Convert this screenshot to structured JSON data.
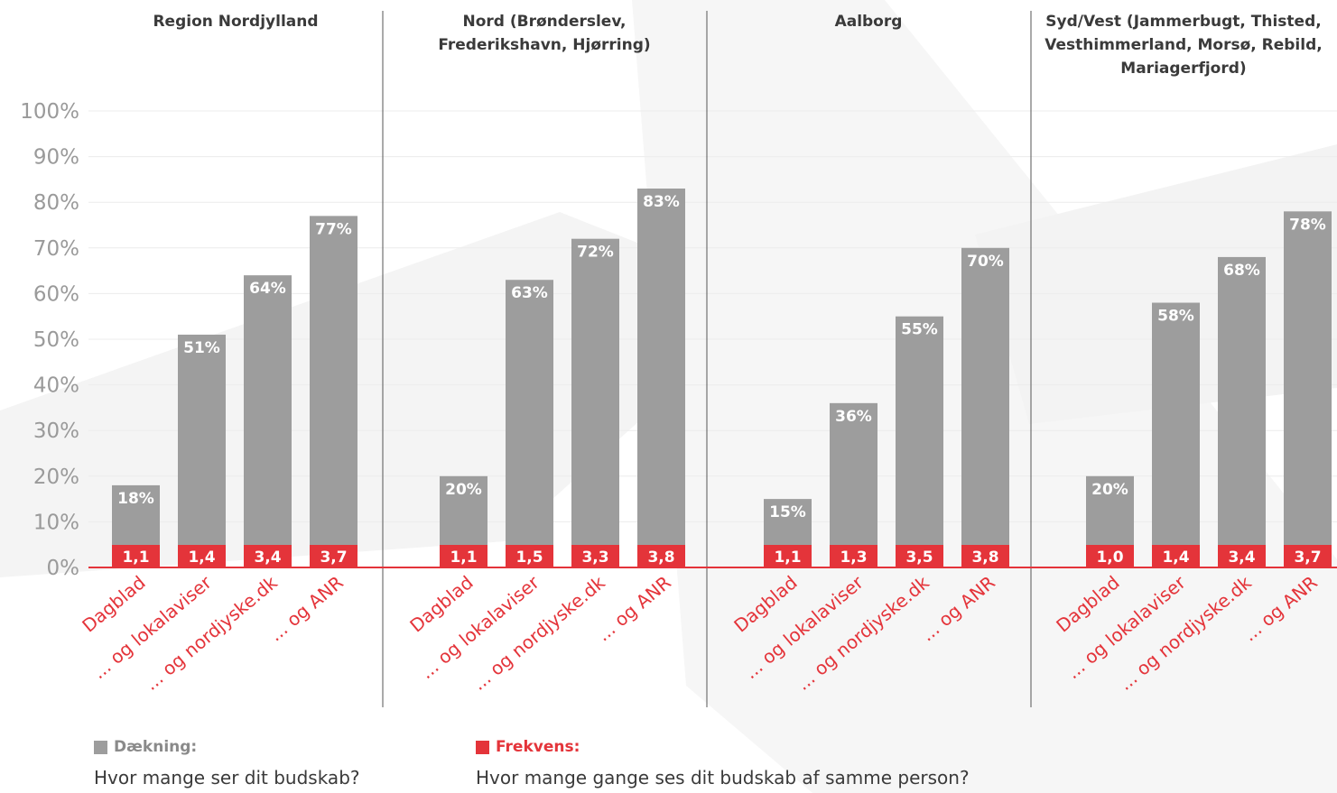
{
  "chart_data": {
    "type": "bar",
    "ylim": [
      0,
      100
    ],
    "y_ticks": [
      "0%",
      "10%",
      "20%",
      "30%",
      "40%",
      "50%",
      "60%",
      "70%",
      "80%",
      "90%",
      "100%"
    ],
    "categories": [
      "Dagblad",
      "... og lokalaviser",
      "... og nordjyske.dk",
      "... og ANR"
    ],
    "grid": true,
    "colors": {
      "coverage": "#9d9d9d",
      "frequency": "#e4343a",
      "axis_text": "#9a9a9a",
      "divider": "#555555"
    },
    "panels": [
      {
        "title": "Region Nordjylland",
        "coverage": [
          18,
          51,
          64,
          77
        ],
        "coverage_labels": [
          "18%",
          "51%",
          "64%",
          "77%"
        ],
        "frequency": [
          "1,1",
          "1,4",
          "3,4",
          "3,7"
        ]
      },
      {
        "title": "Nord (Brønderslev, Frederikshavn, Hjørring)",
        "coverage": [
          20,
          63,
          72,
          83
        ],
        "coverage_labels": [
          "20%",
          "63%",
          "72%",
          "83%"
        ],
        "frequency": [
          "1,1",
          "1,5",
          "3,3",
          "3,8"
        ]
      },
      {
        "title": "Aalborg",
        "coverage": [
          15,
          36,
          55,
          70
        ],
        "coverage_labels": [
          "15%",
          "36%",
          "55%",
          "70%"
        ],
        "frequency": [
          "1,1",
          "1,3",
          "3,5",
          "3,8"
        ]
      },
      {
        "title": "Syd/Vest (Jammerbugt, Thisted, Vesthimmerland, Morsø, Rebild, Mariagerfjord)",
        "coverage": [
          20,
          58,
          68,
          78
        ],
        "coverage_labels": [
          "20%",
          "58%",
          "68%",
          "78%"
        ],
        "frequency": [
          "1,0",
          "1,4",
          "3,4",
          "3,7"
        ]
      }
    ]
  },
  "legend": {
    "coverage": {
      "name": "Dækning:",
      "question": "Hvor mange ser dit budskab?",
      "color": "#9d9d9d"
    },
    "frequency": {
      "name": "Frekvens:",
      "question": "Hvor mange gange ses dit budskab af samme person?",
      "color": "#e4343a"
    }
  }
}
